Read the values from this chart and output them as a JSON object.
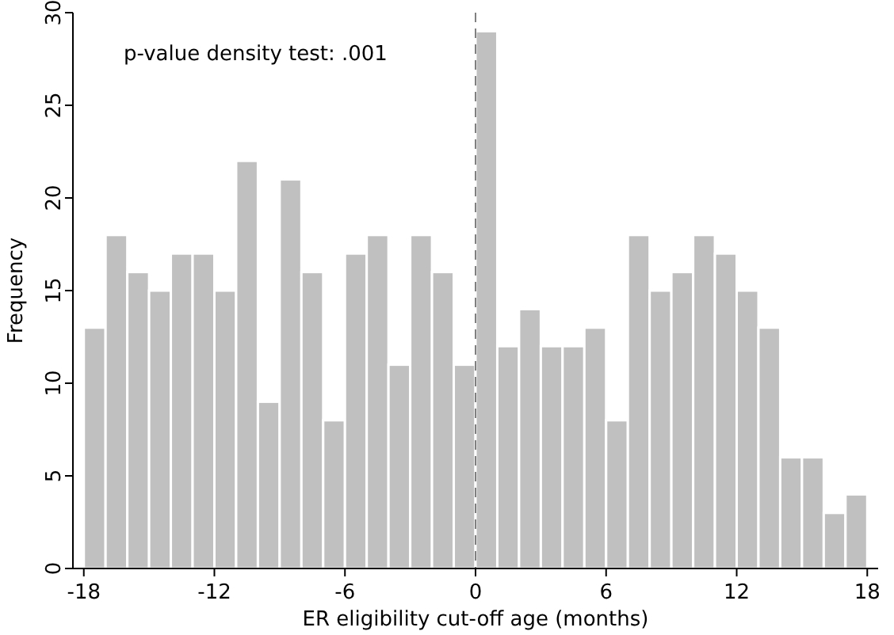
{
  "chart_data": {
    "type": "histogram",
    "xlabel": "ER eligibility cut-off age (months)",
    "ylabel": "Frequency",
    "bins": [
      -18,
      -17,
      -16,
      -15,
      -14,
      -13,
      -12,
      -11,
      -10,
      -9,
      -8,
      -7,
      -6,
      -5,
      -4,
      -3,
      -2,
      -1,
      0,
      1,
      2,
      3,
      4,
      5,
      6,
      7,
      8,
      9,
      10,
      11,
      12,
      13,
      14,
      15,
      16,
      17,
      18
    ],
    "values": [
      13,
      18,
      16,
      15,
      17,
      17,
      15,
      22,
      9,
      21,
      16,
      8,
      17,
      18,
      11,
      18,
      16,
      11,
      29,
      12,
      14,
      12,
      12,
      13,
      8,
      18,
      15,
      16,
      18,
      17,
      15,
      13,
      6,
      6,
      3,
      4
    ],
    "color": "#c0c0c0",
    "xlim": [
      -18.5,
      18.5
    ],
    "xticks": [
      -18,
      -12,
      -6,
      0,
      6,
      12,
      18
    ],
    "ylim": [
      0,
      30
    ],
    "yticks": [
      0,
      5,
      10,
      15,
      20,
      25,
      30
    ],
    "grid": false,
    "ref_lines": [
      {
        "axis": "x",
        "value": 0,
        "color": "#808080",
        "line_style": "dashed"
      }
    ],
    "annotations": [
      "p-value density test: .001"
    ]
  }
}
